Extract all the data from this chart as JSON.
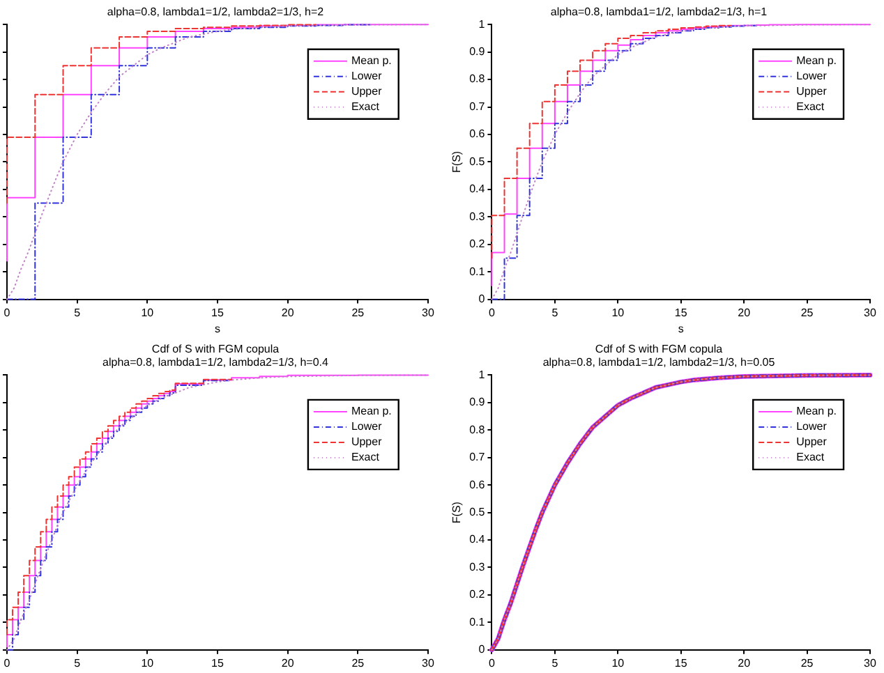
{
  "chart_data": [
    {
      "type": "step",
      "title": "alpha=0.8, lambda1=1/2, lambda2=1/3, h=2",
      "xlabel": "s",
      "xlim": [
        0,
        30
      ],
      "ylim": [
        0,
        1
      ],
      "xticks": [
        0,
        5,
        10,
        15,
        20,
        25,
        30
      ],
      "yticks": [
        0,
        0.1,
        0.2,
        0.3,
        0.4,
        0.5,
        0.6,
        0.7,
        0.8,
        0.9,
        1
      ],
      "tick_labels": "x",
      "legend": "top right",
      "grid": false,
      "marker": "none",
      "series": [
        {
          "name": "Mean p.",
          "color": "#ff44ff",
          "line_style": "solid",
          "type": "step",
          "x": [
            0,
            2,
            4,
            6,
            8,
            10,
            12,
            14,
            16,
            18,
            20,
            22,
            24,
            26,
            28,
            30
          ],
          "values": [
            0.14,
            0.37,
            0.59,
            0.745,
            0.85,
            0.915,
            0.955,
            0.975,
            0.985,
            0.99,
            0.995,
            0.997,
            0.999,
            1,
            1,
            1
          ]
        },
        {
          "name": "Lower",
          "color": "#3333dd",
          "line_style": "dashdot",
          "type": "step",
          "x": [
            0,
            2,
            4,
            6,
            8,
            10,
            12,
            14,
            16,
            18,
            20,
            22,
            24,
            26
          ],
          "values": [
            0,
            0,
            0.35,
            0.59,
            0.745,
            0.85,
            0.915,
            0.955,
            0.975,
            0.985,
            0.99,
            0.995,
            0.997,
            0.999
          ]
        },
        {
          "name": "Upper",
          "color": "#ee3333",
          "line_style": "dashed",
          "type": "step",
          "x": [
            0,
            2,
            4,
            6,
            8,
            10,
            12,
            14,
            16,
            18,
            20,
            22
          ],
          "values": [
            0.35,
            0.59,
            0.745,
            0.85,
            0.915,
            0.955,
            0.975,
            0.985,
            0.99,
            0.995,
            0.997,
            0.999
          ]
        },
        {
          "name": "Exact",
          "color": "#c080c8",
          "line_style": "dotted",
          "type": "line",
          "x": [
            0,
            0.5,
            1,
            1.5,
            2,
            2.5,
            3,
            3.5,
            4,
            4.5,
            5,
            6,
            7,
            8,
            9,
            10,
            11,
            12,
            13,
            14,
            15,
            16,
            18,
            20,
            25,
            30
          ],
          "values": [
            0,
            0.04,
            0.11,
            0.17,
            0.24,
            0.31,
            0.375,
            0.44,
            0.5,
            0.55,
            0.6,
            0.68,
            0.75,
            0.81,
            0.85,
            0.89,
            0.915,
            0.935,
            0.955,
            0.965,
            0.975,
            0.982,
            0.99,
            0.995,
            0.999,
            1
          ]
        }
      ]
    },
    {
      "type": "step",
      "title": "alpha=0.8, lambda1=1/2, lambda2=1/3, h=1",
      "xlabel": "s",
      "ylabel": "F(S)",
      "xlim": [
        0,
        30
      ],
      "ylim": [
        0,
        1
      ],
      "xticks": [
        0,
        5,
        10,
        15,
        20,
        25,
        30
      ],
      "yticks": [
        0,
        0.1,
        0.2,
        0.3,
        0.4,
        0.5,
        0.6,
        0.7,
        0.8,
        0.9,
        1
      ],
      "legend": "top right",
      "grid": false,
      "marker": "none",
      "series": [
        {
          "name": "Mean p.",
          "color": "#ff44ff",
          "line_style": "solid",
          "type": "step",
          "x": [
            0,
            1,
            2,
            3,
            4,
            5,
            6,
            7,
            8,
            9,
            10,
            11,
            12,
            13,
            14,
            15,
            16,
            17,
            18,
            19,
            20,
            21,
            22,
            23,
            24,
            25,
            26,
            27,
            28,
            29,
            30
          ],
          "values": [
            0.05,
            0.17,
            0.31,
            0.44,
            0.55,
            0.64,
            0.72,
            0.78,
            0.83,
            0.87,
            0.905,
            0.925,
            0.945,
            0.96,
            0.97,
            0.977,
            0.983,
            0.988,
            0.991,
            0.994,
            0.996,
            0.997,
            0.998,
            0.999,
            0.999,
            1,
            1,
            1,
            1,
            1,
            1
          ]
        },
        {
          "name": "Lower",
          "color": "#3333dd",
          "line_style": "dashdot",
          "type": "step",
          "x": [
            0,
            1,
            2,
            3,
            4,
            5,
            6,
            7,
            8,
            9,
            10,
            11,
            12,
            13,
            14,
            15,
            16,
            17,
            18,
            19,
            20,
            21
          ],
          "values": [
            0,
            0,
            0.15,
            0.305,
            0.44,
            0.55,
            0.64,
            0.72,
            0.78,
            0.83,
            0.87,
            0.905,
            0.93,
            0.95,
            0.96,
            0.97,
            0.977,
            0.983,
            0.988,
            0.991,
            0.994,
            0.996
          ]
        },
        {
          "name": "Upper",
          "color": "#ee3333",
          "line_style": "dashed",
          "type": "step",
          "x": [
            0,
            1,
            2,
            3,
            4,
            5,
            6,
            7,
            8,
            9,
            10,
            11,
            12,
            13,
            14,
            15,
            16,
            17,
            18,
            19
          ],
          "values": [
            0.15,
            0.305,
            0.44,
            0.55,
            0.64,
            0.72,
            0.78,
            0.83,
            0.87,
            0.905,
            0.93,
            0.95,
            0.96,
            0.97,
            0.977,
            0.983,
            0.988,
            0.991,
            0.994,
            0.996
          ]
        },
        {
          "name": "Exact",
          "color": "#c080c8",
          "line_style": "dotted",
          "type": "line",
          "x": [
            0,
            0.5,
            1,
            1.5,
            2,
            2.5,
            3,
            3.5,
            4,
            4.5,
            5,
            6,
            7,
            8,
            9,
            10,
            11,
            12,
            13,
            14,
            15,
            16,
            18,
            20,
            25,
            30
          ],
          "values": [
            0,
            0.04,
            0.11,
            0.17,
            0.24,
            0.31,
            0.375,
            0.44,
            0.5,
            0.55,
            0.6,
            0.68,
            0.75,
            0.81,
            0.85,
            0.89,
            0.915,
            0.935,
            0.955,
            0.965,
            0.975,
            0.982,
            0.99,
            0.995,
            0.999,
            1
          ]
        }
      ]
    },
    {
      "type": "step",
      "title": "Cdf of S with FGM copula",
      "subtitle": "alpha=0.8, lambda1=1/2, lambda2=1/3, h=0.4",
      "xlim": [
        0,
        30
      ],
      "ylim": [
        0,
        1
      ],
      "xticks": [
        0,
        5,
        10,
        15,
        20,
        25,
        30
      ],
      "yticks": [
        0,
        0.1,
        0.2,
        0.3,
        0.4,
        0.5,
        0.6,
        0.7,
        0.8,
        0.9,
        1
      ],
      "tick_labels": "x",
      "legend": "top right",
      "grid": false,
      "marker": "none",
      "series": [
        {
          "name": "Mean p.",
          "color": "#ff44ff",
          "line_style": "solid",
          "type": "step",
          "x": [
            0,
            0.4,
            0.8,
            1.2,
            1.6,
            2,
            2.4,
            2.8,
            3.2,
            3.6,
            4,
            4.4,
            4.8,
            5.2,
            5.6,
            6,
            6.4,
            6.8,
            7.2,
            7.6,
            8,
            8.4,
            8.8,
            9.2,
            9.6,
            10,
            10.4,
            10.8,
            11.2,
            11.6,
            12,
            14,
            16,
            18,
            20,
            25,
            30
          ],
          "values": [
            0.01,
            0.055,
            0.11,
            0.155,
            0.21,
            0.27,
            0.325,
            0.375,
            0.43,
            0.475,
            0.52,
            0.56,
            0.6,
            0.63,
            0.665,
            0.695,
            0.72,
            0.75,
            0.77,
            0.795,
            0.815,
            0.835,
            0.85,
            0.865,
            0.88,
            0.895,
            0.905,
            0.915,
            0.925,
            0.933,
            0.94,
            0.968,
            0.982,
            0.99,
            0.995,
            0.999,
            1
          ]
        },
        {
          "name": "Lower",
          "color": "#3333dd",
          "line_style": "dashdot",
          "type": "step",
          "x": [
            0,
            0.4,
            0.8,
            1.2,
            1.6,
            2,
            2.4,
            2.8,
            3.2,
            3.6,
            4,
            4.4,
            4.8,
            5.2,
            5.6,
            6,
            6.4,
            6.8,
            7.2,
            7.6,
            8,
            8.4,
            8.8,
            9.2,
            9.6,
            10,
            10.4,
            10.8,
            11.2,
            11.6,
            12,
            14,
            16
          ],
          "values": [
            0,
            0,
            0.055,
            0.11,
            0.155,
            0.21,
            0.27,
            0.325,
            0.375,
            0.43,
            0.475,
            0.52,
            0.56,
            0.6,
            0.63,
            0.665,
            0.695,
            0.72,
            0.75,
            0.77,
            0.795,
            0.815,
            0.835,
            0.85,
            0.865,
            0.88,
            0.895,
            0.905,
            0.915,
            0.925,
            0.935,
            0.963,
            0.98
          ]
        },
        {
          "name": "Upper",
          "color": "#ee3333",
          "line_style": "dashed",
          "type": "step",
          "x": [
            0,
            0.4,
            0.8,
            1.2,
            1.6,
            2,
            2.4,
            2.8,
            3.2,
            3.6,
            4,
            4.4,
            4.8,
            5.2,
            5.6,
            6,
            6.4,
            6.8,
            7.2,
            7.6,
            8,
            8.4,
            8.8,
            9.2,
            9.6,
            10,
            10.4,
            10.8,
            11.2,
            11.6,
            12,
            14,
            16
          ],
          "values": [
            0.055,
            0.11,
            0.155,
            0.21,
            0.27,
            0.325,
            0.375,
            0.43,
            0.475,
            0.52,
            0.56,
            0.6,
            0.63,
            0.665,
            0.695,
            0.72,
            0.75,
            0.77,
            0.795,
            0.815,
            0.835,
            0.85,
            0.865,
            0.88,
            0.895,
            0.905,
            0.915,
            0.925,
            0.933,
            0.94,
            0.945,
            0.97,
            0.984
          ]
        },
        {
          "name": "Exact",
          "color": "#c080c8",
          "line_style": "dotted",
          "type": "line",
          "x": [
            0,
            0.5,
            1,
            1.5,
            2,
            2.5,
            3,
            3.5,
            4,
            4.5,
            5,
            6,
            7,
            8,
            9,
            10,
            11,
            12,
            13,
            14,
            15,
            16,
            18,
            20,
            25,
            30
          ],
          "values": [
            0,
            0.04,
            0.11,
            0.17,
            0.24,
            0.31,
            0.375,
            0.44,
            0.5,
            0.55,
            0.6,
            0.68,
            0.75,
            0.81,
            0.85,
            0.89,
            0.915,
            0.935,
            0.955,
            0.965,
            0.975,
            0.982,
            0.99,
            0.995,
            0.999,
            1
          ]
        }
      ]
    },
    {
      "type": "line",
      "title": "Cdf of S with FGM copula",
      "subtitle": "alpha=0.8, lambda1=1/2, lambda2=1/3, h=0.05",
      "ylabel": "F(S)",
      "xlim": [
        0,
        30
      ],
      "ylim": [
        0,
        1
      ],
      "xticks": [
        0,
        5,
        10,
        15,
        20,
        25,
        30
      ],
      "yticks": [
        0,
        0.1,
        0.2,
        0.3,
        0.4,
        0.5,
        0.6,
        0.7,
        0.8,
        0.9,
        1
      ],
      "legend": "top right",
      "grid": false,
      "marker": "none",
      "series": [
        {
          "name": "Mean p.",
          "color": "#ff44ff",
          "line_style": "solid",
          "x": [
            0,
            0.5,
            1,
            1.5,
            2,
            2.5,
            3,
            3.5,
            4,
            4.5,
            5,
            6,
            7,
            8,
            9,
            10,
            11,
            12,
            13,
            14,
            15,
            16,
            18,
            20,
            25,
            30
          ],
          "values": [
            0,
            0.04,
            0.11,
            0.17,
            0.24,
            0.31,
            0.375,
            0.44,
            0.5,
            0.55,
            0.6,
            0.68,
            0.75,
            0.81,
            0.85,
            0.89,
            0.915,
            0.935,
            0.955,
            0.965,
            0.975,
            0.982,
            0.99,
            0.995,
            0.999,
            1
          ]
        },
        {
          "name": "Lower",
          "color": "#3333dd",
          "line_style": "dashdot",
          "x": [
            0,
            0.5,
            1,
            1.5,
            2,
            2.5,
            3,
            3.5,
            4,
            4.5,
            5,
            6,
            7,
            8,
            9,
            10,
            11,
            12,
            13,
            14,
            15,
            16,
            18,
            20,
            25,
            30
          ],
          "values": [
            0,
            0.04,
            0.11,
            0.17,
            0.24,
            0.31,
            0.375,
            0.44,
            0.5,
            0.55,
            0.6,
            0.68,
            0.75,
            0.81,
            0.85,
            0.89,
            0.915,
            0.935,
            0.955,
            0.965,
            0.975,
            0.982,
            0.99,
            0.995,
            0.999,
            1
          ]
        },
        {
          "name": "Upper",
          "color": "#ee3333",
          "line_style": "dashed",
          "x": [
            0,
            0.5,
            1,
            1.5,
            2,
            2.5,
            3,
            3.5,
            4,
            4.5,
            5,
            6,
            7,
            8,
            9,
            10,
            11,
            12,
            13,
            14,
            15,
            16,
            18,
            20,
            25,
            30
          ],
          "values": [
            0,
            0.04,
            0.11,
            0.17,
            0.24,
            0.31,
            0.375,
            0.44,
            0.5,
            0.55,
            0.6,
            0.68,
            0.75,
            0.81,
            0.85,
            0.89,
            0.915,
            0.935,
            0.955,
            0.965,
            0.975,
            0.982,
            0.99,
            0.995,
            0.999,
            1
          ]
        },
        {
          "name": "Exact",
          "color": "#c080c8",
          "line_style": "dotted",
          "x": [
            0,
            0.5,
            1,
            1.5,
            2,
            2.5,
            3,
            3.5,
            4,
            4.5,
            5,
            6,
            7,
            8,
            9,
            10,
            11,
            12,
            13,
            14,
            15,
            16,
            18,
            20,
            25,
            30
          ],
          "values": [
            0,
            0.04,
            0.11,
            0.17,
            0.24,
            0.31,
            0.375,
            0.44,
            0.5,
            0.55,
            0.6,
            0.68,
            0.75,
            0.81,
            0.85,
            0.89,
            0.915,
            0.935,
            0.955,
            0.965,
            0.975,
            0.982,
            0.99,
            0.995,
            0.999,
            1
          ]
        }
      ]
    }
  ]
}
